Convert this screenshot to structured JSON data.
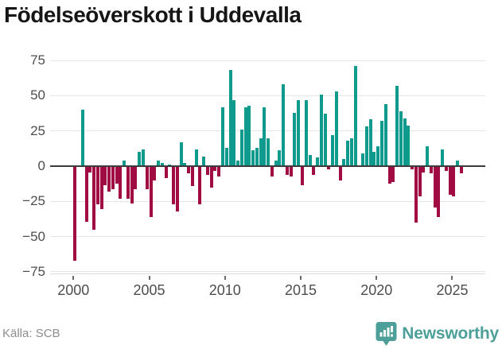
{
  "title": "Födelseöverskott i Uddevalla",
  "footer": {
    "source": "Källa: SCB",
    "brand": "Newsworthy"
  },
  "colors": {
    "positive_bar": "#0f9a8e",
    "negative_bar": "#a00b42",
    "grid": "#e5e5e5",
    "zero_line": "#3c3c3c",
    "bottom_line": "#dbdbdb",
    "tick": "#6b6b6b",
    "axis_text": "#4d4d4d",
    "title_text": "#161616",
    "source_text": "#8c8c8c",
    "brand_teal": "#4d9f99"
  },
  "chart_data": {
    "type": "bar",
    "title": "Födelseöverskott i Uddevalla",
    "xlabel": "",
    "ylabel": "",
    "x_unit": "quarter",
    "start": "2000-Q1",
    "end": "2025-Q3",
    "ylim": [
      -75,
      75
    ],
    "grid": true,
    "legend": false,
    "y_ticks": [
      75,
      50,
      25,
      0,
      -25,
      -50,
      -75
    ],
    "y_tick_labels": [
      "75",
      "50",
      "25",
      "0",
      "−25",
      "−50",
      "−75"
    ],
    "x_tick_years": [
      2000,
      2005,
      2010,
      2015,
      2020,
      2025
    ],
    "series": [
      {
        "year": 2000,
        "q": [
          -67,
          0,
          40,
          -39
        ]
      },
      {
        "year": 2001,
        "q": [
          -4,
          -45,
          -27,
          -30
        ]
      },
      {
        "year": 2002,
        "q": [
          -13,
          -18,
          -16,
          -12
        ]
      },
      {
        "year": 2003,
        "q": [
          -23,
          4,
          -23,
          -26
        ]
      },
      {
        "year": 2004,
        "q": [
          -16,
          10,
          12,
          -16
        ]
      },
      {
        "year": 2005,
        "q": [
          -36,
          -10,
          4,
          2
        ]
      },
      {
        "year": 2006,
        "q": [
          -8,
          1,
          -27,
          -32
        ]
      },
      {
        "year": 2007,
        "q": [
          17,
          2,
          -5,
          -14
        ]
      },
      {
        "year": 2008,
        "q": [
          12,
          -27,
          7,
          -6
        ]
      },
      {
        "year": 2009,
        "q": [
          -15,
          -3,
          -7,
          42
        ]
      },
      {
        "year": 2010,
        "q": [
          13,
          68,
          47,
          4
        ]
      },
      {
        "year": 2011,
        "q": [
          26,
          42,
          43,
          11
        ]
      },
      {
        "year": 2012,
        "q": [
          13,
          20,
          42,
          20
        ]
      },
      {
        "year": 2013,
        "q": [
          -7,
          4,
          11,
          58
        ]
      },
      {
        "year": 2014,
        "q": [
          -6,
          -7,
          38,
          47
        ]
      },
      {
        "year": 2015,
        "q": [
          -13,
          47,
          8,
          -6
        ]
      },
      {
        "year": 2016,
        "q": [
          6,
          51,
          37,
          -2
        ]
      },
      {
        "year": 2017,
        "q": [
          22,
          53,
          -10,
          5
        ]
      },
      {
        "year": 2018,
        "q": [
          18,
          20,
          71,
          0
        ]
      },
      {
        "year": 2019,
        "q": [
          9,
          28,
          33,
          10
        ]
      },
      {
        "year": 2020,
        "q": [
          14,
          32,
          44,
          -12
        ]
      },
      {
        "year": 2021,
        "q": [
          -11,
          57,
          39,
          34
        ]
      },
      {
        "year": 2022,
        "q": [
          29,
          -2,
          -40,
          -21
        ]
      },
      {
        "year": 2023,
        "q": [
          -4,
          14,
          -5,
          -29
        ]
      },
      {
        "year": 2024,
        "q": [
          -36,
          12,
          -3,
          -20
        ]
      },
      {
        "year": 2025,
        "q": [
          -21,
          4,
          -5
        ]
      }
    ]
  }
}
